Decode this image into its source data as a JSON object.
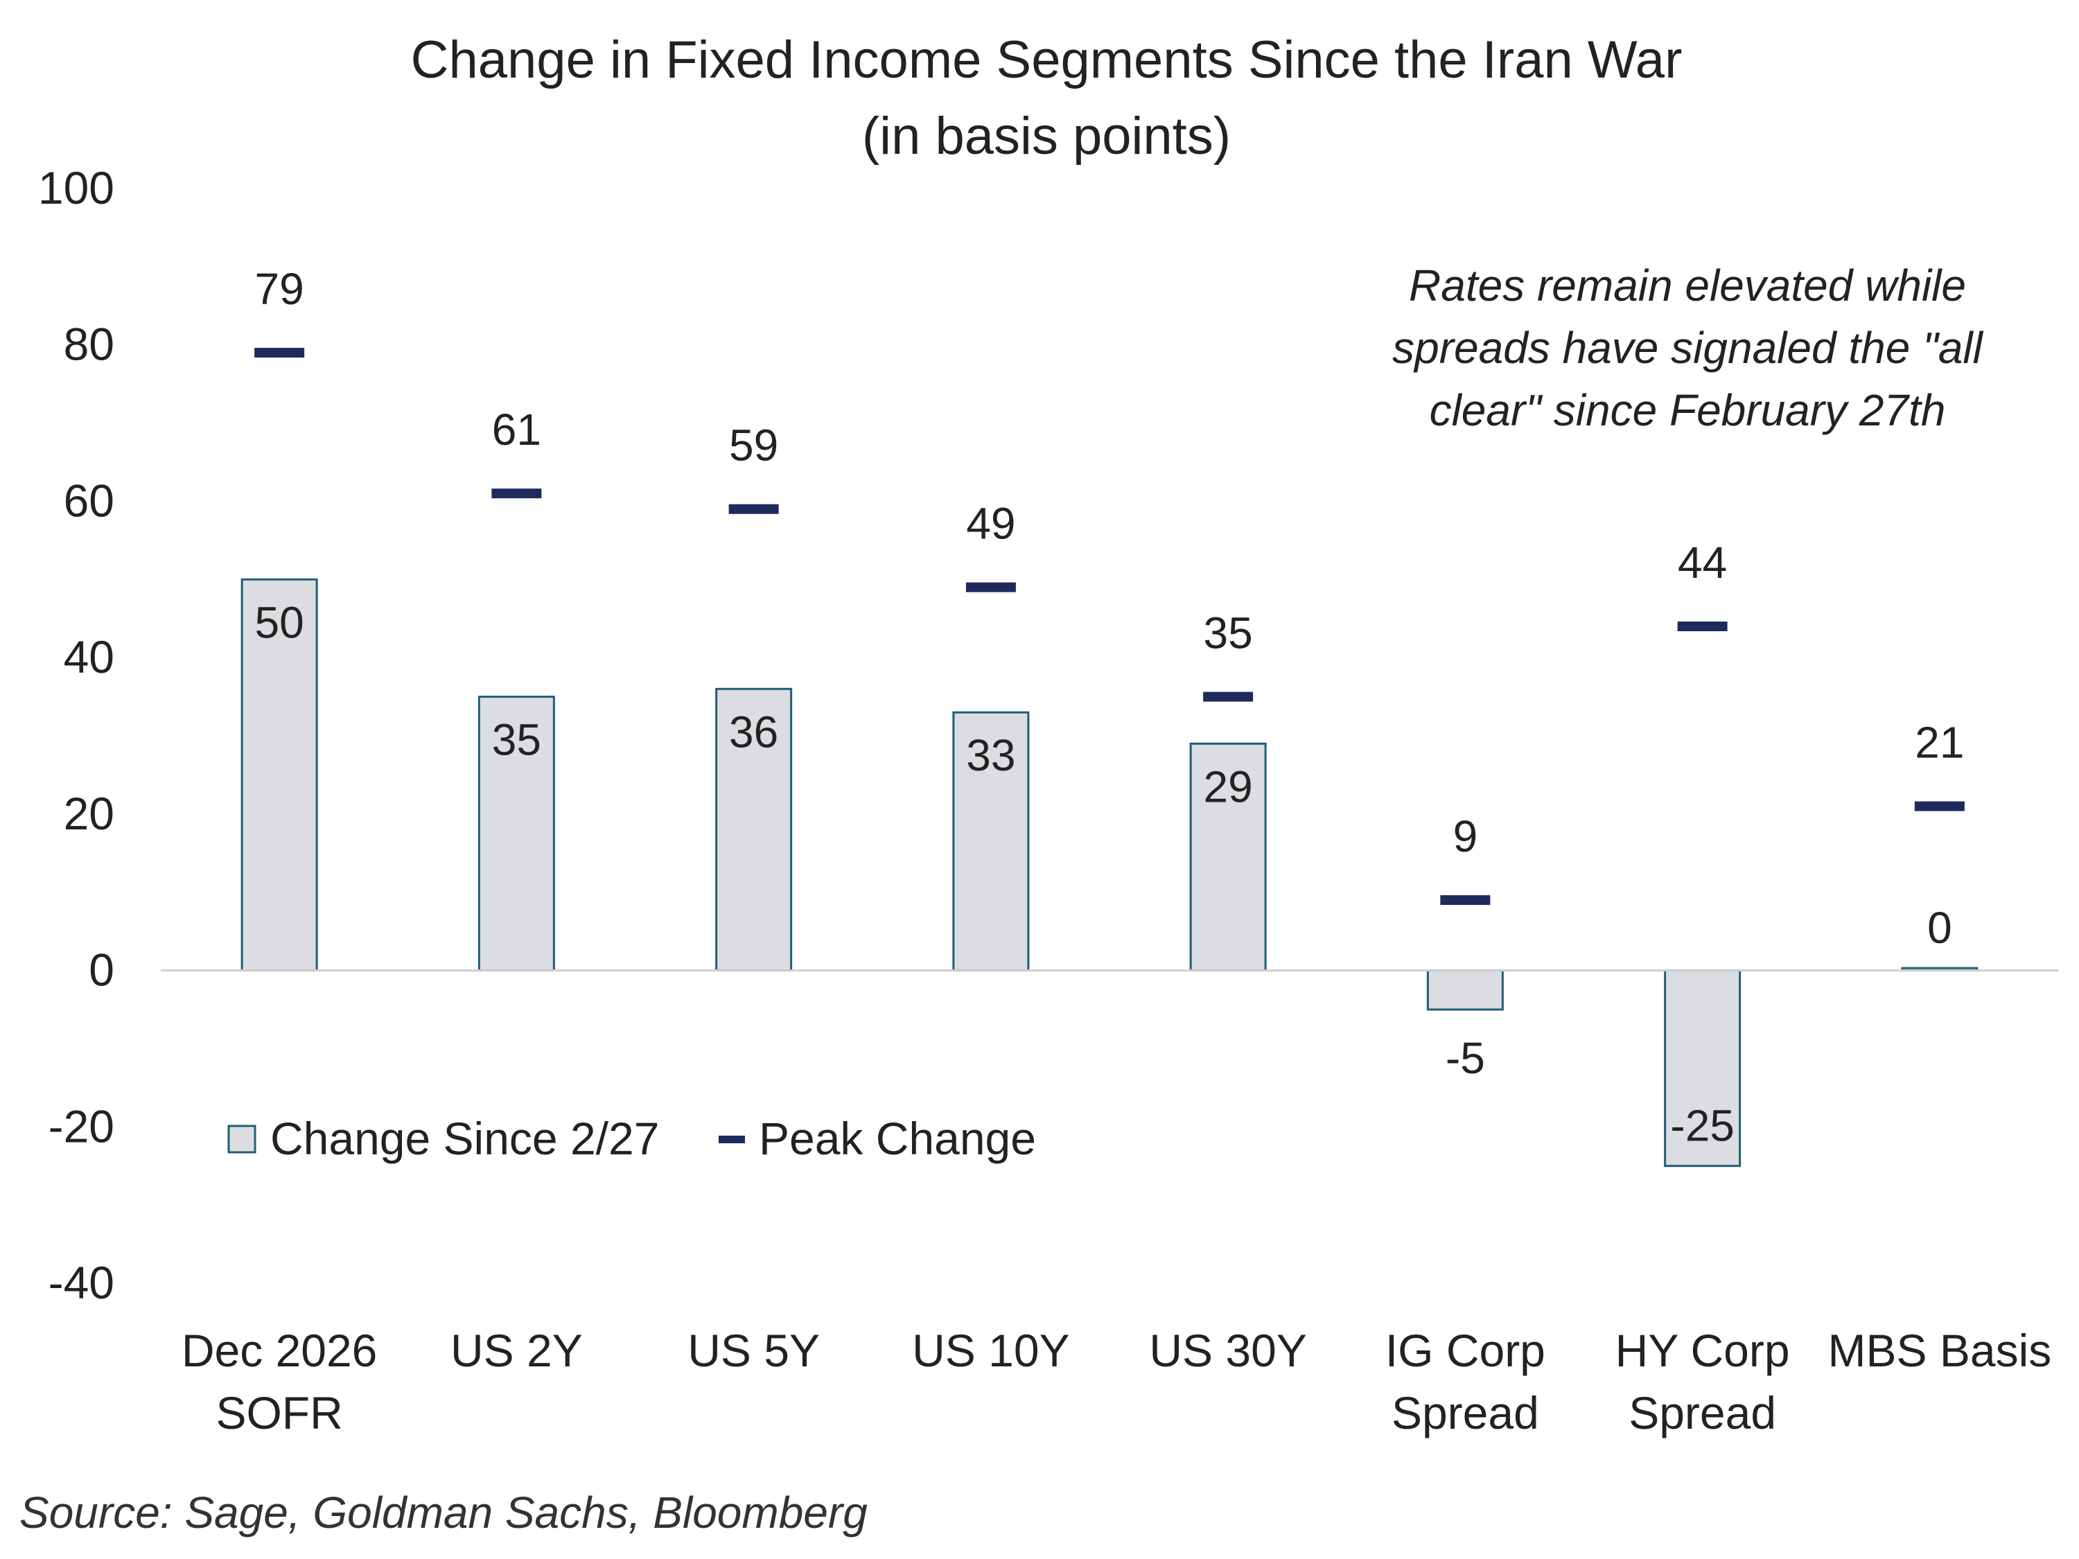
{
  "chart_data": {
    "type": "bar",
    "title": "Change in Fixed Income Segments Since the Iran War",
    "subtitle": "(in basis points)",
    "categories": [
      [
        "Dec 2026",
        "SOFR"
      ],
      [
        "US 2Y"
      ],
      [
        "US 5Y"
      ],
      [
        "US 10Y"
      ],
      [
        "US 30Y"
      ],
      [
        "IG Corp",
        "Spread"
      ],
      [
        "HY Corp",
        "Spread"
      ],
      [
        "MBS Basis"
      ]
    ],
    "series": [
      {
        "name": "Change Since 2/27",
        "kind": "bar",
        "values": [
          50,
          35,
          36,
          33,
          29,
          -5,
          -25,
          0.3
        ],
        "labels": [
          "50",
          "35",
          "36",
          "33",
          "29",
          "-5",
          "-25",
          "0"
        ]
      },
      {
        "name": "Peak Change",
        "kind": "marker-dash",
        "values": [
          79,
          61,
          59,
          49,
          35,
          9,
          44,
          21
        ],
        "labels": [
          "79",
          "61",
          "59",
          "49",
          "35",
          "9",
          "44",
          "21"
        ]
      }
    ],
    "ylim": [
      -40,
      100
    ],
    "yticks": [
      100,
      80,
      60,
      40,
      20,
      0,
      -20,
      -40
    ],
    "grid": false,
    "legend_position": "lower-left",
    "annotation": [
      "Rates remain elevated while",
      "spreads have signaled the \"all",
      "clear\" since February 27th"
    ],
    "source": "Source: Sage, Goldman Sachs, Bloomberg",
    "colors": {
      "bar_fill": "#dcdde0",
      "bar_stroke": "#1f5e7a",
      "marker": "#1f2a5c",
      "axis": "#d0d0d0"
    }
  }
}
